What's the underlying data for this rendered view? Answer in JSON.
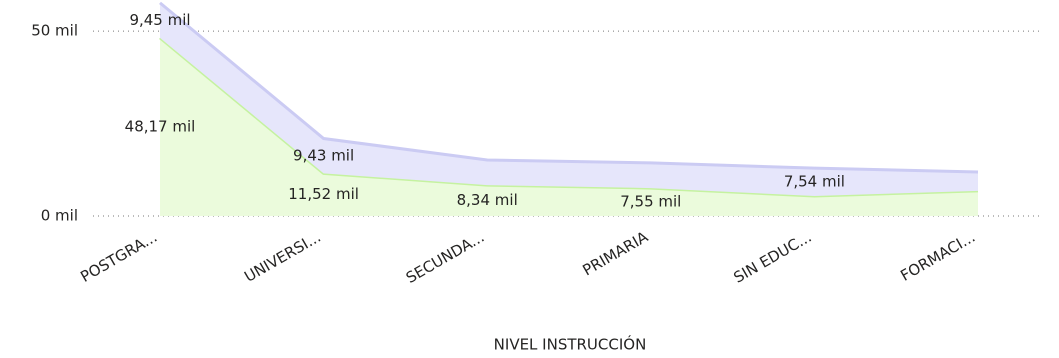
{
  "chart_data": {
    "type": "area",
    "x_label": "NIVEL INSTRUCCIÓN",
    "categories": [
      "POSTGRA...",
      "UNIVERSI...",
      "SECUNDA...",
      "PRIMARIA",
      "SIN EDUC...",
      "FORMACI..."
    ],
    "stacked": true,
    "series": [
      {
        "color": "#c5f2a0",
        "fill": "#ebfbdc",
        "values": [
          48.17,
          11.52,
          8.34,
          7.55,
          5.4,
          6.8
        ],
        "value_labels": [
          "48,17 mil",
          "11,52 mil",
          "8,34 mil",
          "7,55 mil",
          null,
          null
        ]
      },
      {
        "color": "#cbcbf3",
        "fill": "#e6e6fb",
        "values": [
          9.45,
          9.43,
          6.8,
          6.8,
          7.54,
          5.1
        ],
        "value_labels": [
          "9,45 mil",
          "9,43 mil",
          null,
          null,
          "7,54 mil",
          null
        ]
      }
    ],
    "ylim": [
      0,
      58.4
    ],
    "yticks": [
      {
        "value": 0,
        "label": "0 mil"
      },
      {
        "value": 50,
        "label": "50 mil"
      }
    ],
    "grid": true
  }
}
